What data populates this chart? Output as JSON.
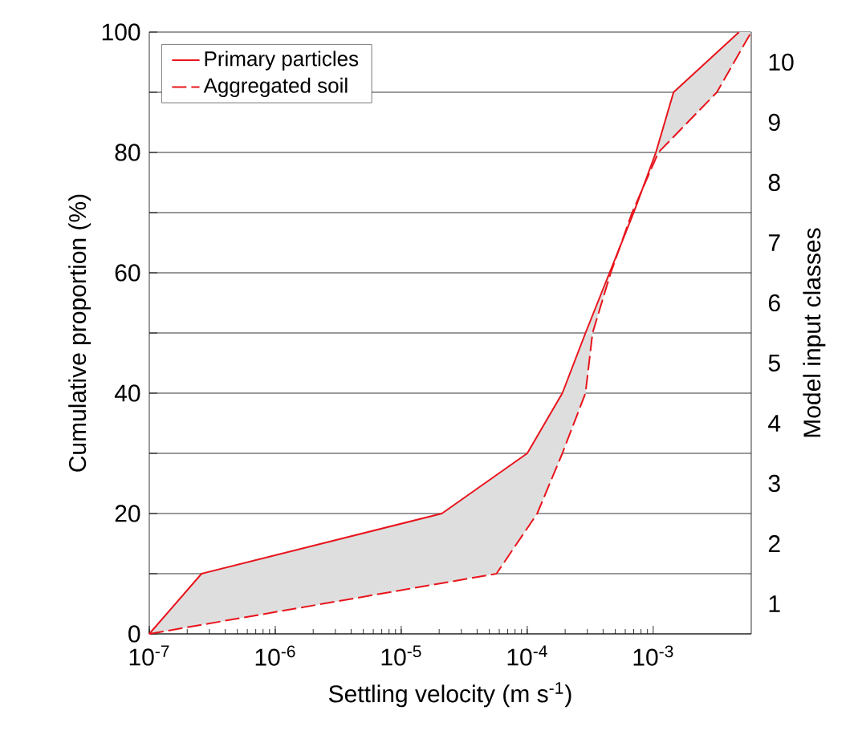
{
  "chart_data": {
    "type": "line",
    "xlabel": "Settling velocity (m s$^{-1}$)",
    "ylabel": "Cumulative proportion (%)",
    "y2label": "Model input classes",
    "log": "x",
    "grid": "y",
    "legend": "top left",
    "marker": "none",
    "xlim": [
      1e-07,
      0.006
    ],
    "ylim": [
      0,
      100
    ],
    "xticks": [
      {
        "value": 1e-07,
        "label": "10$^{-7}$"
      },
      {
        "value": 1e-06,
        "label": "10$^{-6}$"
      },
      {
        "value": 1e-05,
        "label": "10$^{-5}$"
      },
      {
        "value": 0.0001,
        "label": "10$^{-4}$"
      },
      {
        "value": 0.001,
        "label": "10$^{-3}$"
      }
    ],
    "yticks": [
      0,
      {
        "value": 10,
        "label": null
      },
      20,
      {
        "value": 30,
        "label": null
      },
      40,
      {
        "value": 50,
        "label": null
      },
      60,
      {
        "value": 70,
        "label": null
      },
      80,
      {
        "value": 90,
        "label": null
      },
      100
    ],
    "y2lim": [
      0.5,
      10.5
    ],
    "y2ticks": [
      1,
      2,
      3,
      4,
      5,
      6,
      7,
      8,
      9,
      10
    ],
    "series": [
      {
        "name": "Primary particles",
        "color": "#e8141c",
        "line_style": "solid",
        "x": [
          1e-07,
          2.6e-07,
          2.1e-05,
          0.0001,
          0.00019,
          0.00029,
          0.00045,
          0.0007,
          0.00105,
          0.00145,
          0.0048
        ],
        "values": [
          0,
          10,
          20,
          30,
          40,
          50,
          60,
          70,
          80,
          90,
          100
        ]
      },
      {
        "name": "Aggregated soil",
        "color": "#e8141c",
        "line_style": "dashed",
        "x": [
          1e-07,
          5.7e-05,
          0.00012,
          0.00019,
          0.00029,
          0.00033,
          0.00046,
          0.00068,
          0.0011,
          0.0032,
          0.006
        ],
        "values": [
          0,
          10,
          20,
          30,
          40,
          50,
          60,
          70,
          80,
          90,
          100
        ]
      }
    ]
  }
}
